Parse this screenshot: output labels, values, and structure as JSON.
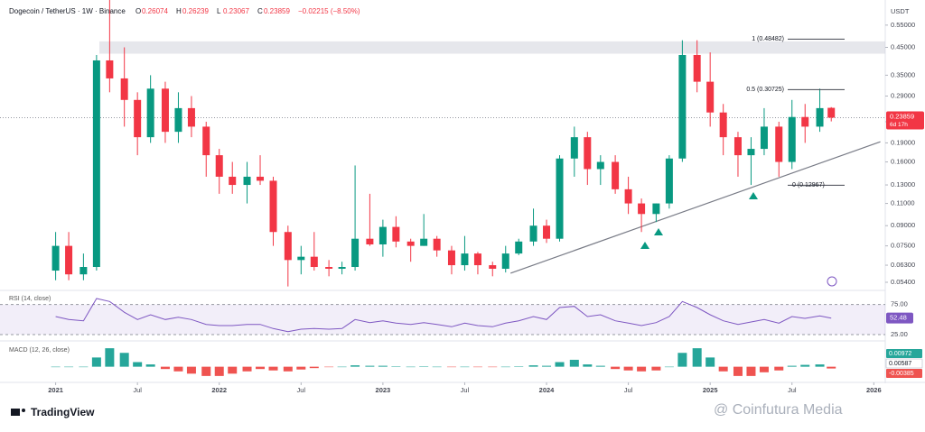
{
  "chart_data": {
    "type": "candlestick",
    "title": "Dogecoin / TetherUS · 1W · Binance",
    "ohlc_labels": [
      "O",
      "H",
      "L",
      "C"
    ],
    "change_label": "−0.02215 (−8.50%)",
    "currency": "USDT",
    "log_scale": true,
    "colors": {
      "up": "#089981",
      "down": "#f23645"
    },
    "xlim": [
      2020.66,
      2026.07
    ],
    "xticks": [
      2021,
      {
        "value": 2021.5,
        "label": "Jul"
      },
      2022,
      {
        "value": 2022.5,
        "label": "Jul"
      },
      2023,
      {
        "value": 2023.5,
        "label": "Jul"
      },
      2024,
      {
        "value": 2024.5,
        "label": "Jul"
      },
      2025,
      {
        "value": 2025.5,
        "label": "Jul"
      },
      2026
    ],
    "ylim": [
      0.051,
      0.69
    ],
    "yticks": [
      {
        "value": 0.054,
        "label": "0.05400"
      },
      {
        "value": 0.063,
        "label": "0.06300"
      },
      {
        "value": 0.075,
        "label": "0.07500"
      },
      {
        "value": 0.09,
        "label": "0.09000"
      },
      {
        "value": 0.11,
        "label": "0.11000"
      },
      {
        "value": 0.13,
        "label": "0.13000"
      },
      {
        "value": 0.16,
        "label": "0.16000"
      },
      {
        "value": 0.19,
        "label": "0.19000"
      },
      {
        "value": 0.23,
        "label": "0.23000"
      },
      {
        "value": 0.29,
        "label": "0.29000"
      },
      {
        "value": 0.35,
        "label": "0.35000"
      },
      {
        "value": 0.45,
        "label": "0.45000"
      },
      {
        "value": 0.55,
        "label": "0.55000"
      }
    ],
    "candles": {
      "x": [
        2021.0,
        2021.08,
        2021.17,
        2021.25,
        2021.33,
        2021.42,
        2021.5,
        2021.58,
        2021.67,
        2021.75,
        2021.83,
        2021.92,
        2022.0,
        2022.08,
        2022.17,
        2022.25,
        2022.33,
        2022.42,
        2022.5,
        2022.58,
        2022.67,
        2022.75,
        2022.83,
        2022.92,
        2023.0,
        2023.08,
        2023.17,
        2023.25,
        2023.33,
        2023.42,
        2023.5,
        2023.58,
        2023.67,
        2023.75,
        2023.83,
        2023.92,
        2024.0,
        2024.08,
        2024.17,
        2024.25,
        2024.33,
        2024.42,
        2024.5,
        2024.58,
        2024.67,
        2024.75,
        2024.83,
        2024.92,
        2025.0,
        2025.08,
        2025.17,
        2025.25,
        2025.33,
        2025.42,
        2025.5,
        2025.58,
        2025.67,
        2025.74
      ],
      "open": [
        0.06,
        0.075,
        0.058,
        0.062,
        0.4,
        0.34,
        0.28,
        0.2,
        0.31,
        0.21,
        0.26,
        0.22,
        0.17,
        0.14,
        0.13,
        0.14,
        0.135,
        0.085,
        0.066,
        0.068,
        0.062,
        0.061,
        0.062,
        0.08,
        0.076,
        0.089,
        0.078,
        0.075,
        0.08,
        0.072,
        0.063,
        0.07,
        0.063,
        0.061,
        0.07,
        0.078,
        0.09,
        0.08,
        0.165,
        0.2,
        0.15,
        0.16,
        0.125,
        0.11,
        0.1,
        0.11,
        0.165,
        0.42,
        0.33,
        0.25,
        0.2,
        0.17,
        0.18,
        0.22,
        0.16,
        0.24,
        0.22,
        0.26074
      ],
      "high": [
        0.085,
        0.085,
        0.07,
        0.42,
        0.69,
        0.45,
        0.3,
        0.35,
        0.33,
        0.3,
        0.29,
        0.23,
        0.18,
        0.16,
        0.16,
        0.17,
        0.14,
        0.09,
        0.075,
        0.085,
        0.066,
        0.065,
        0.155,
        0.12,
        0.095,
        0.098,
        0.08,
        0.1,
        0.082,
        0.075,
        0.082,
        0.071,
        0.065,
        0.075,
        0.08,
        0.105,
        0.095,
        0.17,
        0.22,
        0.21,
        0.17,
        0.17,
        0.14,
        0.115,
        0.11,
        0.17,
        0.48,
        0.48,
        0.43,
        0.27,
        0.21,
        0.2,
        0.26,
        0.23,
        0.28,
        0.27,
        0.31,
        0.26239
      ],
      "low": [
        0.055,
        0.055,
        0.055,
        0.06,
        0.3,
        0.22,
        0.17,
        0.19,
        0.19,
        0.19,
        0.2,
        0.14,
        0.12,
        0.12,
        0.11,
        0.13,
        0.075,
        0.052,
        0.058,
        0.06,
        0.057,
        0.058,
        0.06,
        0.075,
        0.068,
        0.074,
        0.065,
        0.075,
        0.068,
        0.058,
        0.06,
        0.058,
        0.057,
        0.059,
        0.069,
        0.075,
        0.077,
        0.078,
        0.14,
        0.13,
        0.13,
        0.12,
        0.1,
        0.085,
        0.093,
        0.105,
        0.16,
        0.3,
        0.22,
        0.17,
        0.14,
        0.13,
        0.17,
        0.14,
        0.15,
        0.19,
        0.21,
        0.23067
      ],
      "close": [
        0.075,
        0.058,
        0.062,
        0.4,
        0.34,
        0.28,
        0.2,
        0.31,
        0.21,
        0.26,
        0.22,
        0.17,
        0.14,
        0.13,
        0.14,
        0.135,
        0.085,
        0.066,
        0.068,
        0.062,
        0.061,
        0.062,
        0.08,
        0.076,
        0.089,
        0.078,
        0.075,
        0.08,
        0.072,
        0.063,
        0.07,
        0.063,
        0.061,
        0.07,
        0.078,
        0.09,
        0.08,
        0.165,
        0.2,
        0.15,
        0.16,
        0.125,
        0.11,
        0.1,
        0.11,
        0.165,
        0.42,
        0.33,
        0.25,
        0.2,
        0.17,
        0.18,
        0.22,
        0.16,
        0.24,
        0.22,
        0.26,
        0.23859
      ]
    },
    "countdown": "6d 17h",
    "resistance_zone": [
      0.425,
      0.475
    ],
    "fib_levels": [
      {
        "level_label": "1 (0.48482)",
        "value": 0.48482
      },
      {
        "level_label": "0.5 (0.30725)",
        "value": 0.30725
      },
      {
        "level_label": "0 (0.12967)",
        "value": 0.12967
      }
    ],
    "trendline": {
      "x": [
        2023.78,
        2026.04
      ],
      "y": [
        0.0586,
        0.192
      ]
    },
    "rsi": {
      "title": "RSI (14, close)",
      "ylim": [
        16,
        94
      ],
      "yticks": [
        {
          "value": 75,
          "label": "75.00"
        },
        {
          "value": 25,
          "label": "25.00"
        }
      ],
      "color": "#7e57c2",
      "values": [
        55,
        50,
        48,
        85,
        80,
        62,
        50,
        58,
        50,
        54,
        50,
        42,
        40,
        40,
        42,
        42,
        35,
        30,
        34,
        35,
        34,
        35,
        50,
        45,
        48,
        44,
        42,
        45,
        42,
        38,
        44,
        40,
        38,
        44,
        48,
        55,
        50,
        70,
        72,
        55,
        58,
        48,
        44,
        40,
        45,
        55,
        80,
        70,
        58,
        48,
        42,
        46,
        50,
        44,
        55,
        52,
        56,
        52.48
      ]
    },
    "macd": {
      "title": "MACD (12, 26, close)",
      "ylim": [
        -0.03,
        0.05
      ],
      "macd_value": 0.00587,
      "signal_value": 0.00972,
      "colors": {
        "macd": "#2962ff",
        "signal": "#ff6d00",
        "up": "#26a69a",
        "down": "#ef5350"
      },
      "histogram": [
        0,
        0,
        0,
        0.02,
        0.04,
        0.03,
        0.01,
        0.005,
        -0.005,
        -0.01,
        -0.015,
        -0.02,
        -0.02,
        -0.015,
        -0.01,
        -0.005,
        -0.008,
        -0.01,
        -0.006,
        -0.003,
        -0.001,
        0,
        0.003,
        0.002,
        0.002,
        0.001,
        0,
        0.001,
        0,
        -0.001,
        0,
        -0.001,
        -0.001,
        0,
        0.001,
        0.003,
        0.002,
        0.01,
        0.015,
        0.005,
        0.002,
        -0.005,
        -0.008,
        -0.01,
        -0.008,
        0,
        0.03,
        0.04,
        0.02,
        -0.01,
        -0.02,
        -0.02,
        -0.012,
        -0.008,
        0.002,
        0.004,
        0.005,
        -0.00385
      ]
    },
    "brand": "TradingView",
    "watermark": "@ Coinfutura Media"
  }
}
